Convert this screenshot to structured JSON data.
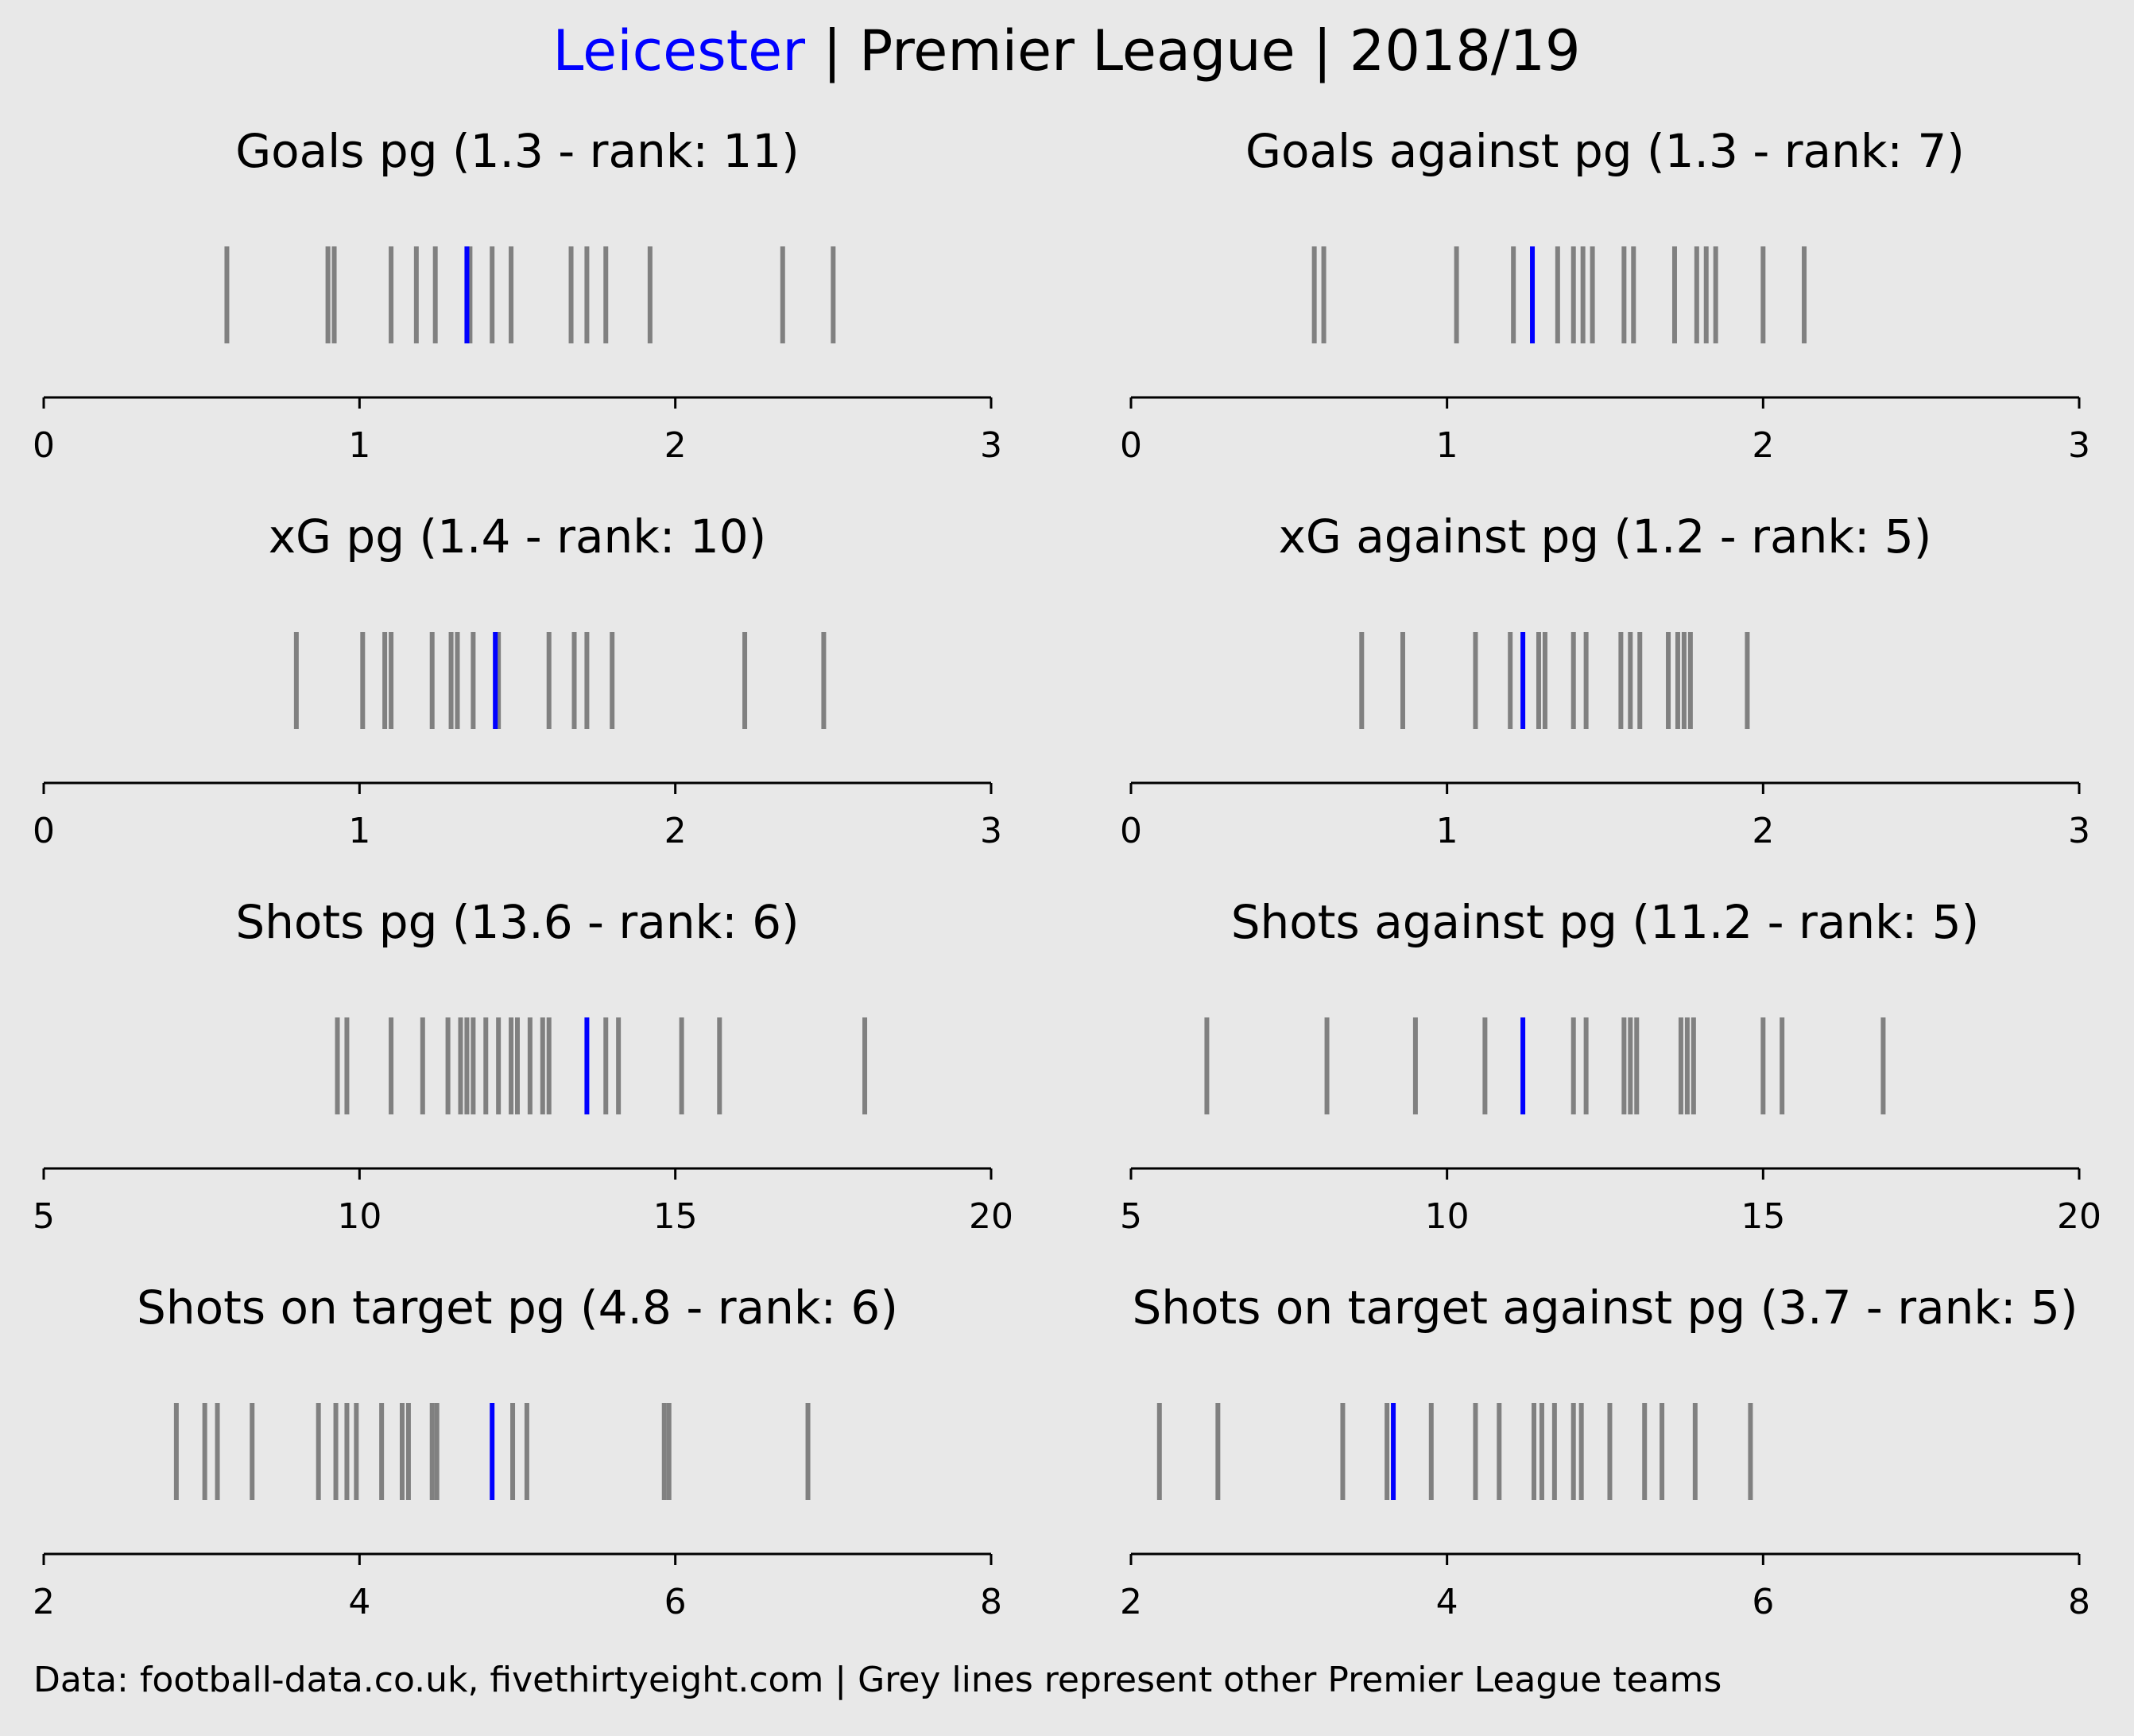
{
  "title": {
    "team": "Leicester",
    "rest": " | Premier League | 2018/19",
    "team_color": "#0000ff",
    "text_color": "#000000"
  },
  "footer": "Data: football-data.co.uk, fivethirtyeight.com | Grey lines represent other Premier League teams",
  "colors": {
    "background": "#e8e8e8",
    "other_teams": "#808080",
    "highlight": "#0000ff",
    "axis": "#000000"
  },
  "chart_data": [
    {
      "type": "rug",
      "title": "Goals pg (1.3 - rank: 11)",
      "xlim": [
        0,
        3
      ],
      "ticks": [
        0,
        1,
        2,
        3
      ],
      "tick_labels": [
        "0",
        "1",
        "2",
        "3"
      ],
      "highlight": 1.34,
      "others": [
        0.58,
        0.9,
        0.92,
        1.1,
        1.18,
        1.24,
        1.35,
        1.42,
        1.48,
        1.67,
        1.72,
        1.78,
        1.92,
        2.34,
        2.5
      ]
    },
    {
      "type": "rug",
      "title": "Goals against pg (1.3 - rank: 7)",
      "xlim": [
        0,
        3
      ],
      "ticks": [
        0,
        1,
        2,
        3
      ],
      "tick_labels": [
        "0",
        "1",
        "2",
        "3"
      ],
      "highlight": 1.27,
      "others": [
        0.58,
        0.61,
        1.03,
        1.21,
        1.35,
        1.4,
        1.43,
        1.46,
        1.56,
        1.59,
        1.72,
        1.79,
        1.82,
        1.85,
        2.0,
        2.13
      ]
    },
    {
      "type": "rug",
      "title": "xG pg (1.4 - rank: 10)",
      "xlim": [
        0,
        3
      ],
      "ticks": [
        0,
        1,
        2,
        3
      ],
      "tick_labels": [
        "0",
        "1",
        "2",
        "3"
      ],
      "highlight": 1.43,
      "others": [
        0.8,
        1.01,
        1.08,
        1.1,
        1.23,
        1.29,
        1.31,
        1.36,
        1.44,
        1.6,
        1.68,
        1.72,
        1.8,
        2.22,
        2.47
      ]
    },
    {
      "type": "rug",
      "title": "xG against pg (1.2 - rank: 5)",
      "xlim": [
        0,
        3
      ],
      "ticks": [
        0,
        1,
        2,
        3
      ],
      "tick_labels": [
        "0",
        "1",
        "2",
        "3"
      ],
      "highlight": 1.24,
      "others": [
        0.73,
        0.86,
        1.09,
        1.2,
        1.29,
        1.31,
        1.4,
        1.44,
        1.55,
        1.58,
        1.61,
        1.7,
        1.73,
        1.75,
        1.77,
        1.95
      ]
    },
    {
      "type": "rug",
      "title": "Shots pg (13.6 - rank: 6)",
      "xlim": [
        5,
        20
      ],
      "ticks": [
        5,
        10,
        15,
        20
      ],
      "tick_labels": [
        "5",
        "10",
        "15",
        "20"
      ],
      "highlight": 13.6,
      "others": [
        9.65,
        9.8,
        10.5,
        11.0,
        11.4,
        11.6,
        11.7,
        11.8,
        12.0,
        12.2,
        12.4,
        12.5,
        12.7,
        12.9,
        13.0,
        13.9,
        14.1,
        15.1,
        15.7,
        18.0
      ]
    },
    {
      "type": "rug",
      "title": "Shots against pg (11.2 - rank: 5)",
      "xlim": [
        5,
        20
      ],
      "ticks": [
        5,
        10,
        15,
        20
      ],
      "tick_labels": [
        "5",
        "10",
        "15",
        "20"
      ],
      "highlight": 11.2,
      "others": [
        6.2,
        8.1,
        9.5,
        10.6,
        12.0,
        12.2,
        12.8,
        12.9,
        13.0,
        13.7,
        13.8,
        13.9,
        15.0,
        15.3,
        16.9
      ]
    },
    {
      "type": "rug",
      "title": "Shots on target pg (4.8 - rank: 6)",
      "xlim": [
        2,
        8
      ],
      "ticks": [
        2,
        4,
        6,
        8
      ],
      "tick_labels": [
        "2",
        "4",
        "6",
        "8"
      ],
      "highlight": 4.84,
      "others": [
        2.84,
        3.02,
        3.1,
        3.32,
        3.74,
        3.85,
        3.92,
        3.98,
        4.14,
        4.27,
        4.31,
        4.46,
        4.49,
        4.97,
        5.06,
        5.93,
        5.96,
        6.84
      ]
    },
    {
      "type": "rug",
      "title": "Shots on target against pg (3.7 - rank: 5)",
      "xlim": [
        2,
        8
      ],
      "ticks": [
        2,
        4,
        6,
        8
      ],
      "tick_labels": [
        "2",
        "4",
        "6",
        "8"
      ],
      "highlight": 3.66,
      "others": [
        2.18,
        2.55,
        3.34,
        3.62,
        3.9,
        4.18,
        4.33,
        4.55,
        4.6,
        4.68,
        4.8,
        4.85,
        5.03,
        5.25,
        5.36,
        5.57,
        5.92
      ]
    }
  ]
}
